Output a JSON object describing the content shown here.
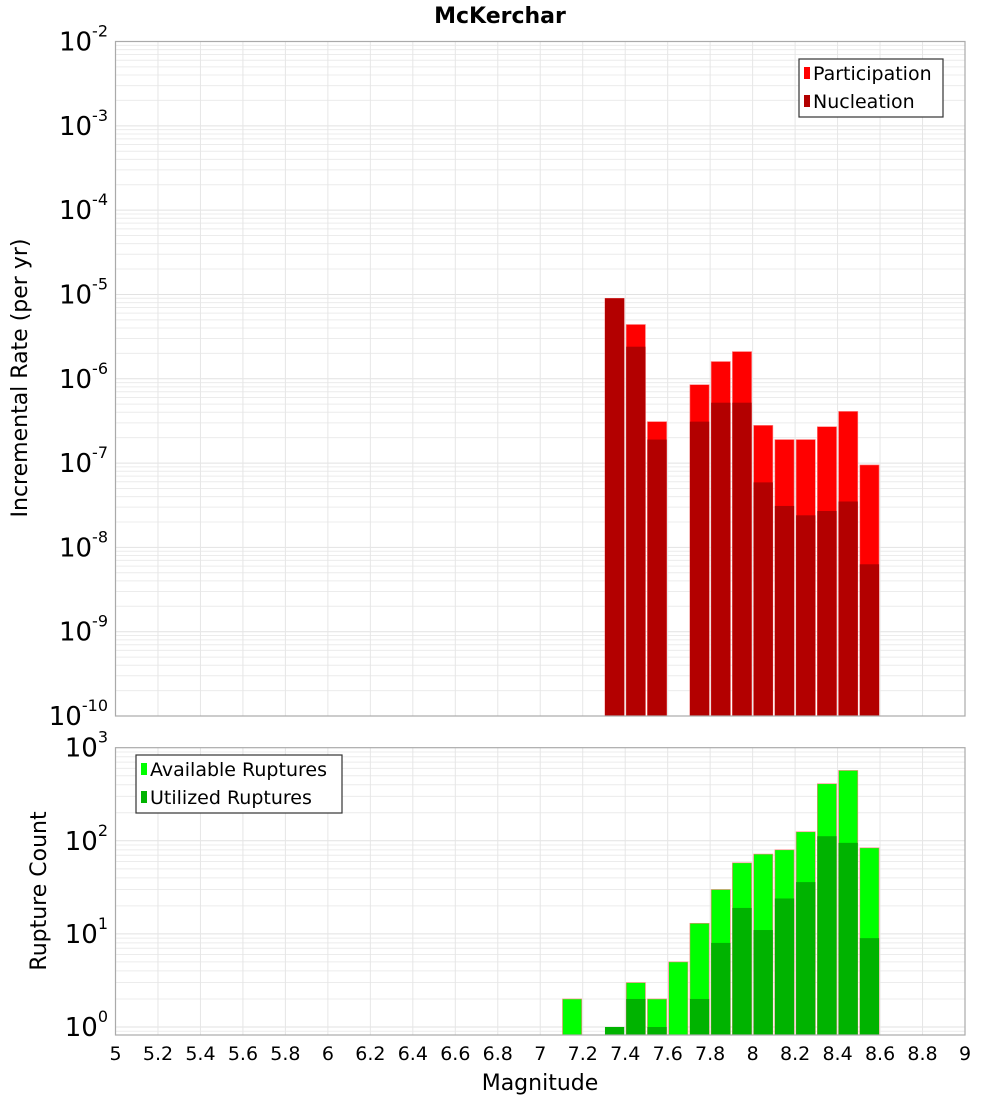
{
  "chart_data": [
    {
      "type": "bar",
      "title": "McKerchar",
      "xlabel": "Magnitude",
      "ylabel": "Incremental Rate (per yr)",
      "yscale": "log",
      "xlim": [
        5,
        9
      ],
      "ylim": [
        1e-10,
        0.01
      ],
      "bin_width": 0.1,
      "legend_position": "top-right",
      "x": [
        7.35,
        7.45,
        7.55,
        7.75,
        7.85,
        7.95,
        8.05,
        8.15,
        8.25,
        8.35,
        8.45,
        8.55
      ],
      "series": [
        {
          "name": "Participation",
          "color": "#ff0000",
          "values": [
            9e-06,
            4.4e-06,
            3.1e-07,
            8.5e-07,
            1.6e-06,
            2.1e-06,
            2.8e-07,
            1.9e-07,
            1.9e-07,
            2.7e-07,
            4.1e-07,
            9.5e-08
          ]
        },
        {
          "name": "Nucleation",
          "color": "#b30000",
          "values": [
            9e-06,
            2.4e-06,
            1.9e-07,
            3.1e-07,
            5.2e-07,
            5.2e-07,
            5.9e-08,
            3.1e-08,
            2.4e-08,
            2.7e-08,
            3.5e-08,
            6.3e-09
          ]
        }
      ]
    },
    {
      "type": "bar",
      "xlabel": "Magnitude",
      "ylabel": "Rupture Count",
      "yscale": "log",
      "xlim": [
        5,
        9
      ],
      "ylim": [
        0.82,
        1000
      ],
      "bin_width": 0.1,
      "legend_position": "top-left",
      "x": [
        7.15,
        7.35,
        7.45,
        7.55,
        7.65,
        7.75,
        7.85,
        7.95,
        8.05,
        8.15,
        8.25,
        8.35,
        8.45,
        8.55
      ],
      "series": [
        {
          "name": "Available Ruptures",
          "color": "#00ff00",
          "values": [
            2,
            0,
            3,
            2,
            5,
            13,
            30,
            58,
            72,
            80,
            125,
            410,
            570,
            84
          ]
        },
        {
          "name": "Utilized Ruptures",
          "color": "#00b300",
          "values": [
            0,
            1,
            2,
            1,
            0,
            2,
            8,
            19,
            11,
            24,
            36,
            112,
            95,
            9
          ]
        }
      ]
    }
  ],
  "x_ticks": [
    "5",
    "5.2",
    "5.4",
    "5.6",
    "5.8",
    "6",
    "6.2",
    "6.4",
    "6.6",
    "6.8",
    "7",
    "7.2",
    "7.4",
    "7.6",
    "7.8",
    "8",
    "8.2",
    "8.4",
    "8.6",
    "8.8",
    "9"
  ],
  "top_y_ticks": [
    {
      "base": "10",
      "exp": "-2"
    },
    {
      "base": "10",
      "exp": "-3"
    },
    {
      "base": "10",
      "exp": "-4"
    },
    {
      "base": "10",
      "exp": "-5"
    },
    {
      "base": "10",
      "exp": "-6"
    },
    {
      "base": "10",
      "exp": "-7"
    },
    {
      "base": "10",
      "exp": "-8"
    },
    {
      "base": "10",
      "exp": "-9"
    },
    {
      "base": "10",
      "exp": "-10"
    }
  ],
  "bottom_y_ticks": [
    {
      "base": "10",
      "exp": "3"
    },
    {
      "base": "10",
      "exp": "2"
    },
    {
      "base": "10",
      "exp": "1"
    },
    {
      "base": "10",
      "exp": "0"
    }
  ]
}
